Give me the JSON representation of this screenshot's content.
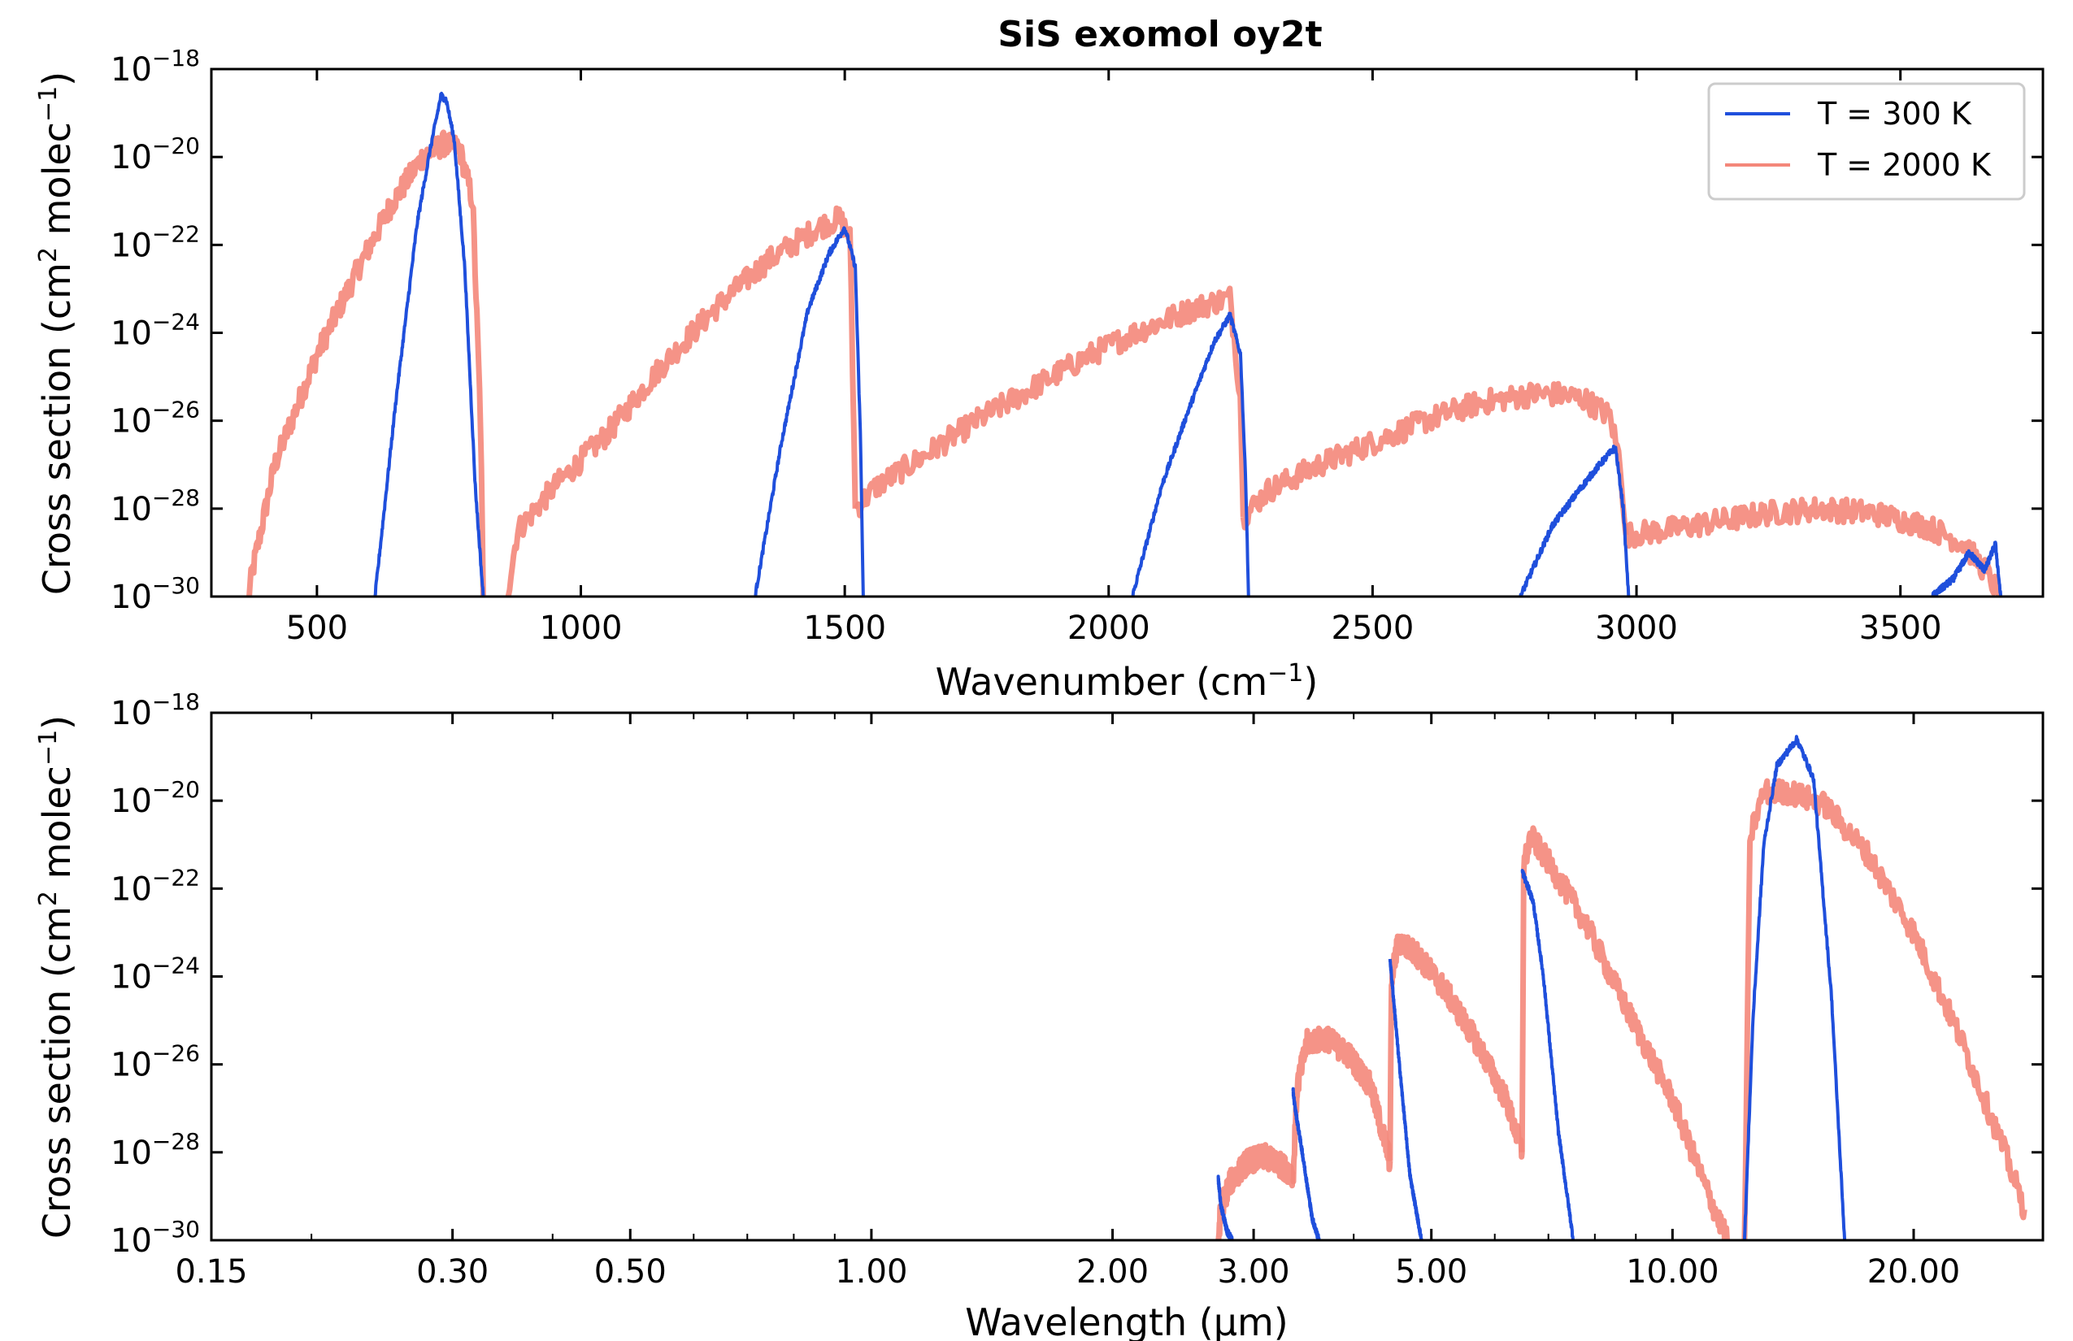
{
  "chart_data": [
    {
      "type": "line",
      "title": "SiS exomol oy2t",
      "xlabel": "Wavenumber (cm",
      "xlabel_sup": "−1",
      "xlabel_end": ")",
      "ylabel": "Cross section (cm",
      "ylabel_sup1": "2",
      "ylabel_mid": " molec",
      "ylabel_sup2": "−1",
      "ylabel_end": ")",
      "x_scale": "linear",
      "y_scale": "log",
      "xlim": [
        300,
        3770
      ],
      "ylim": [
        1e-30,
        1e-18
      ],
      "x_ticks": [
        500,
        1000,
        1500,
        2000,
        2500,
        3000,
        3500
      ],
      "x_tick_labels": [
        "500",
        "1000",
        "1500",
        "2000",
        "2500",
        "3000",
        "3500"
      ],
      "y_tick_exponents": [
        -30,
        -28,
        -26,
        -24,
        -22,
        -20,
        -18
      ],
      "y_tick_base": "10",
      "legend": {
        "placement": "top-right",
        "entries": [
          "T = 300 K",
          "T = 2000 K"
        ]
      },
      "series": [
        {
          "name": "T = 300 K",
          "color": "#1f4fdc",
          "bands": [
            {
              "x": [
                610,
                650,
                690,
                715,
                735,
                745,
                760,
                780,
                800,
                815
              ],
              "log10y": [
                -30,
                -25.5,
                -21.5,
                -19.8,
                -18.6,
                -18.7,
                -19.6,
                -22.5,
                -27.5,
                -30
              ]
            },
            {
              "x": [
                1330,
                1380,
                1430,
                1470,
                1500,
                1520,
                1530,
                1535
              ],
              "log10y": [
                -30,
                -26.5,
                -23.5,
                -22.2,
                -21.6,
                -22.5,
                -26.5,
                -30
              ]
            },
            {
              "x": [
                2045,
                2100,
                2150,
                2200,
                2230,
                2250,
                2260,
                2265
              ],
              "log10y": [
                -30,
                -27.5,
                -25.8,
                -24.2,
                -23.6,
                -24.5,
                -27.5,
                -30
              ]
            },
            {
              "x": [
                2780,
                2840,
                2890,
                2930,
                2960,
                2975,
                2985
              ],
              "log10y": [
                -30,
                -28.4,
                -27.6,
                -27.0,
                -26.6,
                -28.0,
                -30
              ]
            },
            {
              "x": [
                3560,
                3600,
                3630,
                3660,
                3680,
                3690
              ],
              "log10y": [
                -30,
                -29.6,
                -29.0,
                -29.4,
                -28.8,
                -30
              ]
            }
          ]
        },
        {
          "name": "T = 2000 K",
          "color": "#f4877a",
          "bands": [
            {
              "x": [
                370,
                380,
                420,
                500,
                580,
                640,
                700,
                740,
                770,
                795,
                810,
                815
              ],
              "log10y": [
                -30,
                -29.3,
                -27.0,
                -24.5,
                -22.5,
                -21.1,
                -20.0,
                -19.7,
                -19.8,
                -21.0,
                -26.0,
                -30
              ]
            },
            {
              "x": [
                860,
                880,
                950,
                1050,
                1150,
                1250,
                1350,
                1450,
                1490,
                1510,
                1520
              ],
              "log10y": [
                -30,
                -28.5,
                -27.5,
                -26.3,
                -24.8,
                -23.5,
                -22.4,
                -21.6,
                -21.4,
                -21.8,
                -28.0
              ]
            },
            {
              "x": [
                1520,
                1560,
                1650,
                1750,
                1850,
                1950,
                2050,
                2150,
                2200,
                2230,
                2250,
                2255
              ],
              "log10y": [
                -28.0,
                -27.5,
                -26.8,
                -26.0,
                -25.3,
                -24.6,
                -24.0,
                -23.5,
                -23.3,
                -23.2,
                -25.5,
                -28.2
              ]
            },
            {
              "x": [
                2255,
                2300,
                2400,
                2500,
                2600,
                2700,
                2800,
                2850,
                2900,
                2950,
                2970,
                2980
              ],
              "log10y": [
                -28.2,
                -27.6,
                -27.0,
                -26.5,
                -26.0,
                -25.6,
                -25.4,
                -25.4,
                -25.5,
                -25.9,
                -27.0,
                -28.6
              ]
            },
            {
              "x": [
                2980,
                3050,
                3150,
                3250,
                3350,
                3450,
                3550,
                3620,
                3660,
                3690
              ],
              "log10y": [
                -28.6,
                -28.5,
                -28.3,
                -28.1,
                -28.0,
                -28.1,
                -28.4,
                -28.8,
                -29.4,
                -30
              ]
            }
          ]
        }
      ]
    },
    {
      "type": "line",
      "xlabel": "Wavelength (μm)",
      "ylabel": "Cross section (cm",
      "ylabel_sup1": "2",
      "ylabel_mid": " molec",
      "ylabel_sup2": "−1",
      "ylabel_end": ")",
      "x_scale": "log",
      "y_scale": "log",
      "xlim": [
        0.15,
        29.0
      ],
      "ylim": [
        1e-30,
        1e-18
      ],
      "x_ticks": [
        0.15,
        0.3,
        0.5,
        1.0,
        2.0,
        3.0,
        5.0,
        10.0,
        20.0
      ],
      "x_tick_labels": [
        "0.15",
        "0.30",
        "0.50",
        "1.00",
        "2.00",
        "3.00",
        "5.00",
        "10.00",
        "20.00"
      ],
      "y_tick_exponents": [
        -30,
        -28,
        -26,
        -24,
        -22,
        -20,
        -18
      ],
      "y_tick_base": "10",
      "series": [
        {
          "name": "T = 300 K",
          "color": "#1f4fdc",
          "bands": [
            {
              "x": [
                2.71,
                2.73,
                2.78,
                2.82
              ],
              "log10y": [
                -28.6,
                -29.2,
                -29.8,
                -30
              ]
            },
            {
              "x": [
                3.36,
                3.38,
                3.45,
                3.55,
                3.62
              ],
              "log10y": [
                -26.6,
                -27.0,
                -28.0,
                -29.5,
                -30
              ]
            },
            {
              "x": [
                4.44,
                4.47,
                4.55,
                4.7,
                4.86
              ],
              "log10y": [
                -23.6,
                -24.2,
                -25.8,
                -28.5,
                -30
              ]
            },
            {
              "x": [
                6.49,
                6.55,
                6.7,
                6.9,
                7.2,
                7.52
              ],
              "log10y": [
                -21.6,
                -21.8,
                -22.3,
                -24.0,
                -27.5,
                -30
              ]
            },
            {
              "x": [
                12.3,
                12.6,
                13.0,
                13.5,
                14.3,
                15.0,
                15.8,
                16.4
              ],
              "log10y": [
                -30,
                -25.0,
                -21.0,
                -19.2,
                -18.6,
                -19.5,
                -24.5,
                -30
              ]
            }
          ]
        },
        {
          "name": "T = 2000 K",
          "color": "#f4877a",
          "bands": [
            {
              "x": [
                2.71,
                2.73,
                2.8,
                2.95,
                3.1,
                3.25,
                3.36
              ],
              "log10y": [
                -30,
                -29.3,
                -28.7,
                -28.2,
                -28.1,
                -28.3,
                -28.5
              ]
            },
            {
              "x": [
                3.36,
                3.4,
                3.5,
                3.7,
                3.95,
                4.2,
                4.44
              ],
              "log10y": [
                -28.6,
                -26.5,
                -25.5,
                -25.4,
                -25.8,
                -26.5,
                -28.2
              ]
            },
            {
              "x": [
                4.44,
                4.46,
                4.55,
                4.8,
                5.2,
                5.7,
                6.2,
                6.49
              ],
              "log10y": [
                -28.2,
                -24.0,
                -23.2,
                -23.5,
                -24.3,
                -25.5,
                -26.8,
                -28.0
              ]
            },
            {
              "x": [
                6.49,
                6.52,
                6.65,
                7.0,
                7.8,
                8.8,
                10.0,
                11.0,
                11.7
              ],
              "log10y": [
                -28.0,
                -21.5,
                -20.8,
                -21.4,
                -22.8,
                -24.8,
                -26.8,
                -28.8,
                -30
              ]
            },
            {
              "x": [
                12.3,
                12.5,
                13.0,
                14.0,
                15.5,
                17.5,
                20.0,
                23.0,
                26.0,
                27.5
              ],
              "log10y": [
                -30,
                -20.8,
                -19.8,
                -19.8,
                -20.1,
                -21.2,
                -23.0,
                -25.5,
                -28.0,
                -29.3
              ]
            }
          ]
        }
      ]
    }
  ]
}
